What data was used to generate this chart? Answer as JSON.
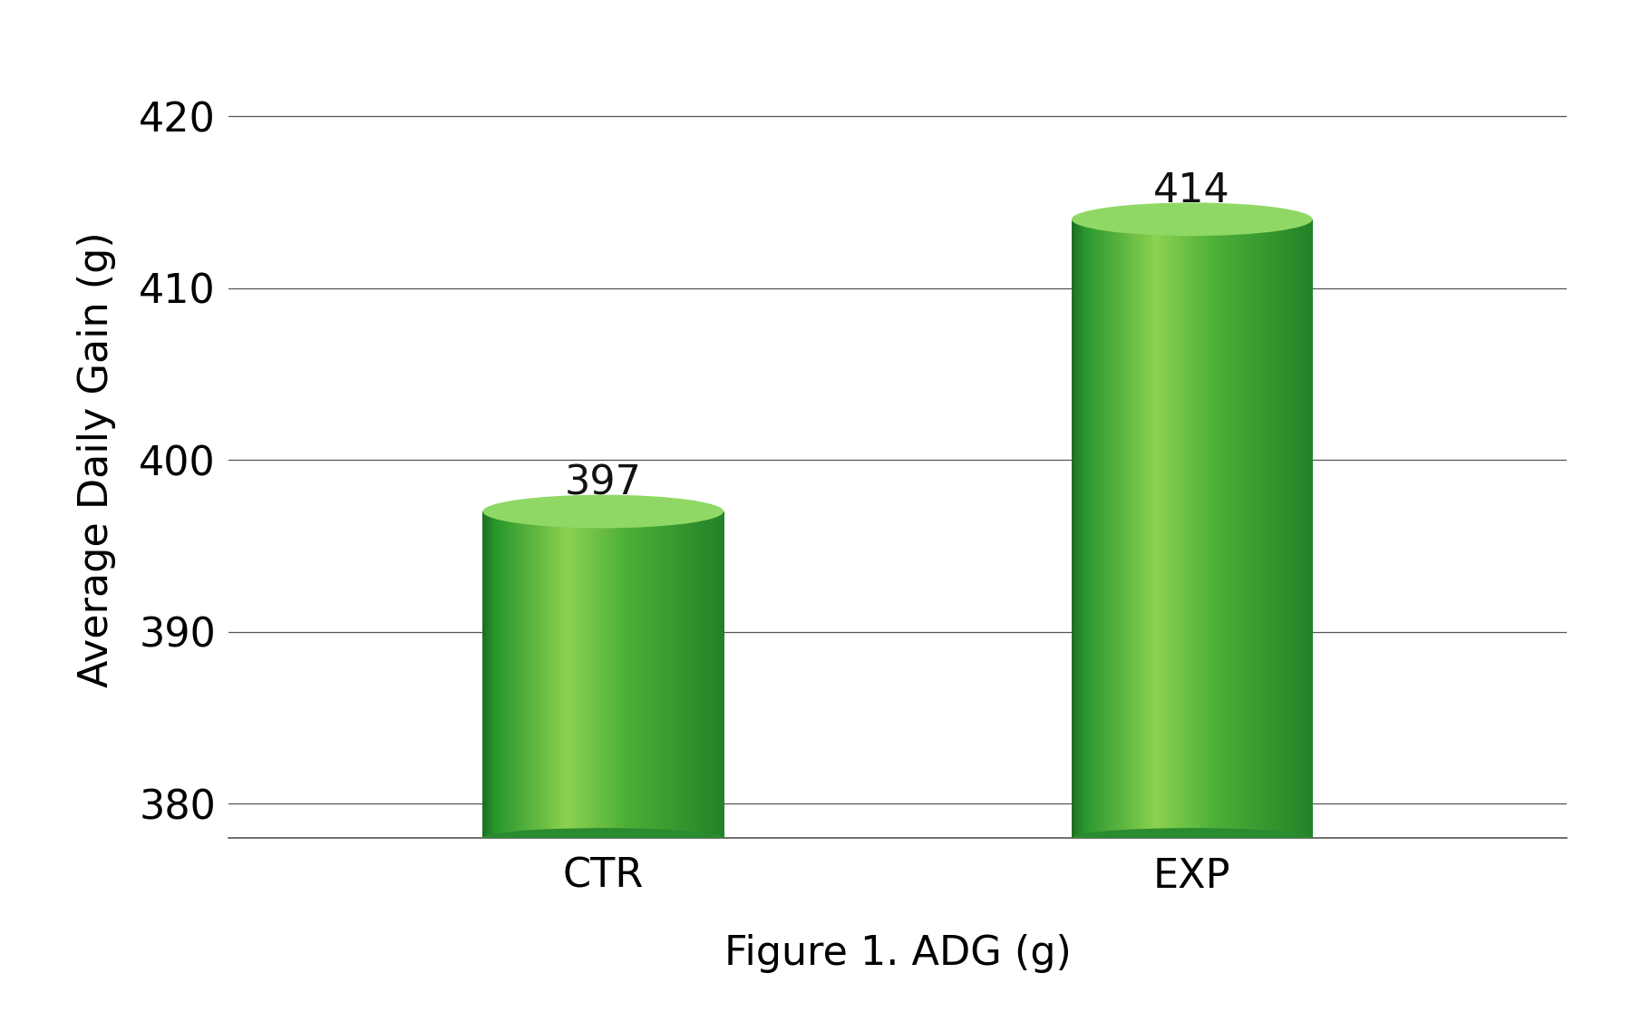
{
  "categories": [
    "CTR",
    "EXP"
  ],
  "values": [
    397,
    414
  ],
  "bar_labels": [
    "397",
    "414"
  ],
  "ylabel": "Average Daily Gain (g)",
  "xlabel": "Figure 1. ADG (g)",
  "ylim": [
    378,
    422
  ],
  "yticks": [
    380,
    390,
    400,
    410,
    420
  ],
  "bar_positions": [
    0.28,
    0.72
  ],
  "bar_width": 0.18,
  "background_color": "#ffffff",
  "label_fontsize": 32,
  "tick_fontsize": 32,
  "ylabel_fontsize": 32,
  "xlabel_fontsize": 32,
  "bar_label_fontsize": 32
}
